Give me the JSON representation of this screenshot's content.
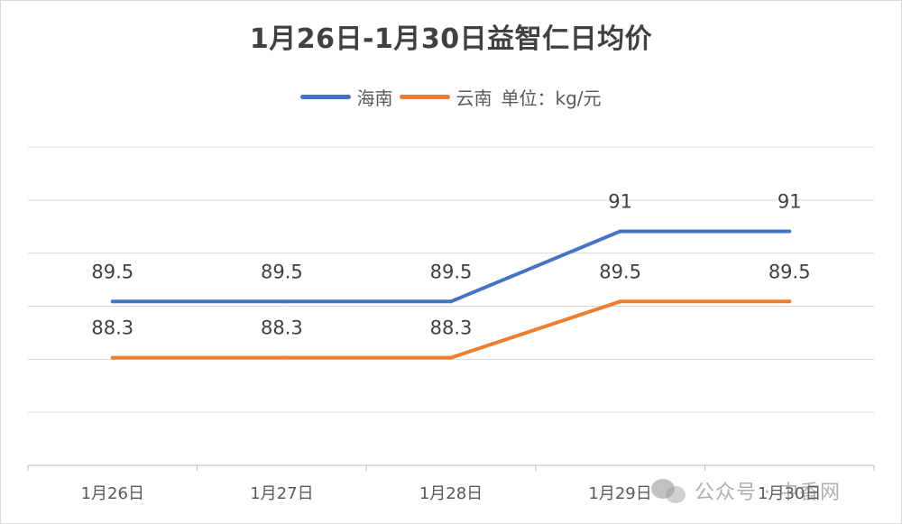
{
  "chart_data": {
    "type": "line",
    "title": "1月26日-1月30日益智仁日均价",
    "unit_label": "单位：kg/元",
    "categories": [
      "1月26日",
      "1月27日",
      "1月28日",
      "1月29日",
      "1月30日"
    ],
    "series": [
      {
        "name": "海南",
        "values": [
          89.5,
          89.5,
          89.5,
          91,
          91
        ],
        "color": "#4472C4"
      },
      {
        "name": "云南",
        "values": [
          88.3,
          88.3,
          88.3,
          89.5,
          89.5
        ],
        "color": "#ED7D31"
      }
    ],
    "ylim": [
      86,
      92.8
    ],
    "grid": true,
    "legend_position": "top"
  },
  "watermark": {
    "text": "公众号 · 中香网",
    "icon": "wechat-icon"
  }
}
